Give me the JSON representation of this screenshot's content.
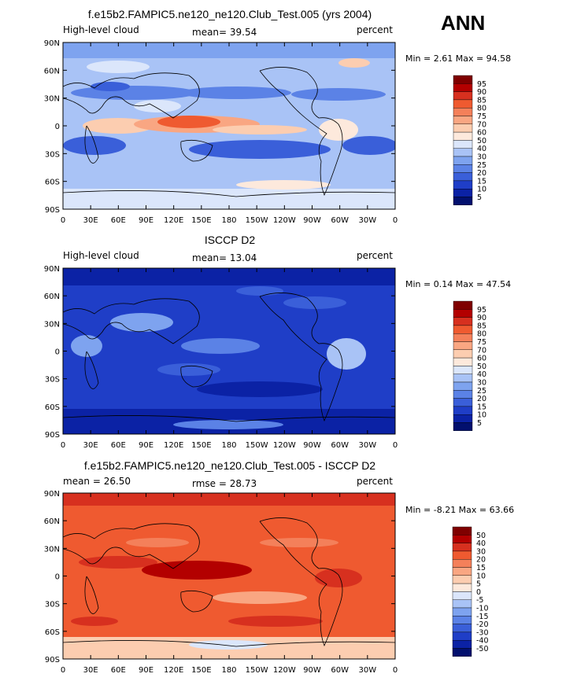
{
  "ann_label": "ANN",
  "chart_data": [
    {
      "type": "heatmap",
      "title": "f.e15b2.FAMPIC5.ne120_ne120.Club_Test.005 (yrs 2004)",
      "left_label": "High-level cloud",
      "center_label": "mean=  39.54",
      "right_label": "percent",
      "minmax": "Min =   2.61 Max =  94.58",
      "lat_ticks": [
        "90N",
        "60N",
        "30N",
        "0",
        "30S",
        "60S",
        "90S"
      ],
      "lon_ticks": [
        "0",
        "30E",
        "60E",
        "90E",
        "120E",
        "150E",
        "180",
        "150W",
        "120W",
        "90W",
        "60W",
        "30W",
        "0"
      ],
      "colorbar": {
        "labels": [
          "95",
          "90",
          "85",
          "80",
          "75",
          "70",
          "60",
          "50",
          "40",
          "30",
          "25",
          "20",
          "15",
          "10",
          "5"
        ],
        "colors": [
          "#7f0000",
          "#b30000",
          "#d7301f",
          "#ef5a30",
          "#f4805a",
          "#f9a682",
          "#fccdb0",
          "#fde9dc",
          "#dbe6fb",
          "#a9c3f6",
          "#7ea3ef",
          "#5b82e6",
          "#3a5fd9",
          "#1f3ec7",
          "#0b22a5",
          "#02106e"
        ]
      },
      "mean": 39.54,
      "min": 2.61,
      "max": 94.58
    },
    {
      "type": "heatmap",
      "title": "ISCCP D2",
      "left_label": "High-level cloud",
      "center_label": "mean=  13.04",
      "right_label": "percent",
      "minmax": "Min =   0.14 Max =  47.54",
      "lat_ticks": [
        "90N",
        "60N",
        "30N",
        "0",
        "30S",
        "60S",
        "90S"
      ],
      "lon_ticks": [
        "0",
        "30E",
        "60E",
        "90E",
        "120E",
        "150E",
        "180",
        "150W",
        "120W",
        "90W",
        "60W",
        "30W",
        "0"
      ],
      "colorbar": {
        "labels": [
          "95",
          "90",
          "85",
          "80",
          "75",
          "70",
          "60",
          "50",
          "40",
          "30",
          "25",
          "20",
          "15",
          "10",
          "5"
        ],
        "colors": [
          "#7f0000",
          "#b30000",
          "#d7301f",
          "#ef5a30",
          "#f4805a",
          "#f9a682",
          "#fccdb0",
          "#fde9dc",
          "#dbe6fb",
          "#a9c3f6",
          "#7ea3ef",
          "#5b82e6",
          "#3a5fd9",
          "#1f3ec7",
          "#0b22a5",
          "#02106e"
        ]
      },
      "mean": 13.04,
      "min": 0.14,
      "max": 47.54
    },
    {
      "type": "heatmap",
      "title": "f.e15b2.FAMPIC5.ne120_ne120.Club_Test.005 - ISCCP D2",
      "left_label": "mean =  26.50",
      "center_label": "rmse =  28.73",
      "right_label": "percent",
      "minmax": "Min =  -8.21 Max =  63.66",
      "lat_ticks": [
        "90N",
        "60N",
        "30N",
        "0",
        "30S",
        "60S",
        "90S"
      ],
      "lon_ticks": [
        "0",
        "30E",
        "60E",
        "90E",
        "120E",
        "150E",
        "180",
        "150W",
        "120W",
        "90W",
        "60W",
        "30W",
        "0"
      ],
      "colorbar": {
        "labels": [
          "50",
          "40",
          "30",
          "20",
          "15",
          "10",
          "5",
          "0",
          "-5",
          "-10",
          "-15",
          "-20",
          "-30",
          "-40",
          "-50"
        ],
        "colors": [
          "#7f0000",
          "#b30000",
          "#d7301f",
          "#ef5a30",
          "#f4805a",
          "#f9a682",
          "#fccdb0",
          "#fde9dc",
          "#dbe6fb",
          "#a9c3f6",
          "#7ea3ef",
          "#5b82e6",
          "#3a5fd9",
          "#1f3ec7",
          "#0b22a5",
          "#02106e"
        ]
      },
      "mean": 26.5,
      "rmse": 28.73,
      "min": -8.21,
      "max": 63.66
    }
  ]
}
